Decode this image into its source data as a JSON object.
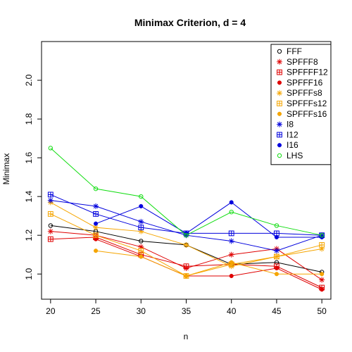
{
  "chart_data": {
    "type": "line",
    "title": "Minimax Criterion, d = 4",
    "xlabel": "n",
    "ylabel": "Minimax",
    "x": [
      20,
      25,
      30,
      35,
      40,
      45,
      50
    ],
    "x_ticks": [
      "20",
      "25",
      "30",
      "35",
      "40",
      "45",
      "50"
    ],
    "xlim": [
      19,
      51
    ],
    "ylim": [
      0.87,
      2.2
    ],
    "y_ticks": [
      "1.0",
      "1.2",
      "1.4",
      "1.6",
      "1.8",
      "2.0"
    ],
    "y_tick_values": [
      1.0,
      1.2,
      1.4,
      1.6,
      1.8,
      2.0
    ],
    "grid": false,
    "legend_position": "top-right",
    "series": [
      {
        "name": "FFF",
        "color": "#000000",
        "marker": "open-circle",
        "values": [
          1.25,
          1.22,
          1.17,
          1.15,
          1.05,
          1.06,
          1.01
        ]
      },
      {
        "name": "SPFFF8",
        "color": "#df0000",
        "marker": "asterisk",
        "values": [
          1.22,
          1.2,
          1.14,
          1.03,
          1.1,
          1.13,
          0.97
        ]
      },
      {
        "name": "SPFFFF12",
        "color": "#df0000",
        "marker": "boxplus",
        "values": [
          1.18,
          1.19,
          1.1,
          1.04,
          1.05,
          1.04,
          0.93
        ]
      },
      {
        "name": "SPFFF16",
        "color": "#df0000",
        "marker": "filled-circle",
        "values": [
          null,
          1.18,
          1.09,
          0.99,
          0.99,
          1.03,
          0.92
        ]
      },
      {
        "name": "SPFFFs8",
        "color": "#f5a500",
        "marker": "asterisk",
        "values": [
          1.37,
          1.24,
          1.22,
          1.15,
          1.04,
          1.09,
          1.13
        ]
      },
      {
        "name": "SPFFFs12",
        "color": "#f5a500",
        "marker": "boxplus",
        "values": [
          1.31,
          1.2,
          1.12,
          0.99,
          1.05,
          1.09,
          1.15
        ]
      },
      {
        "name": "SPFFFs16",
        "color": "#f5a500",
        "marker": "filled-circle",
        "values": [
          null,
          1.12,
          1.09,
          0.99,
          1.06,
          1.0,
          1.0
        ]
      },
      {
        "name": "I8",
        "color": "#0000dd",
        "marker": "asterisk",
        "values": [
          1.38,
          1.35,
          1.27,
          1.2,
          1.17,
          1.12,
          1.2
        ]
      },
      {
        "name": "I12",
        "color": "#0000dd",
        "marker": "boxplus",
        "values": [
          1.41,
          1.31,
          1.24,
          1.21,
          1.21,
          1.21,
          1.2
        ]
      },
      {
        "name": "I16",
        "color": "#0000dd",
        "marker": "filled-circle",
        "values": [
          null,
          1.26,
          1.35,
          1.21,
          1.37,
          1.19,
          1.19
        ]
      },
      {
        "name": "LHS",
        "color": "#11dd11",
        "marker": "open-circle",
        "values": [
          1.65,
          1.44,
          1.4,
          1.2,
          1.32,
          1.25,
          1.2
        ]
      }
    ]
  }
}
